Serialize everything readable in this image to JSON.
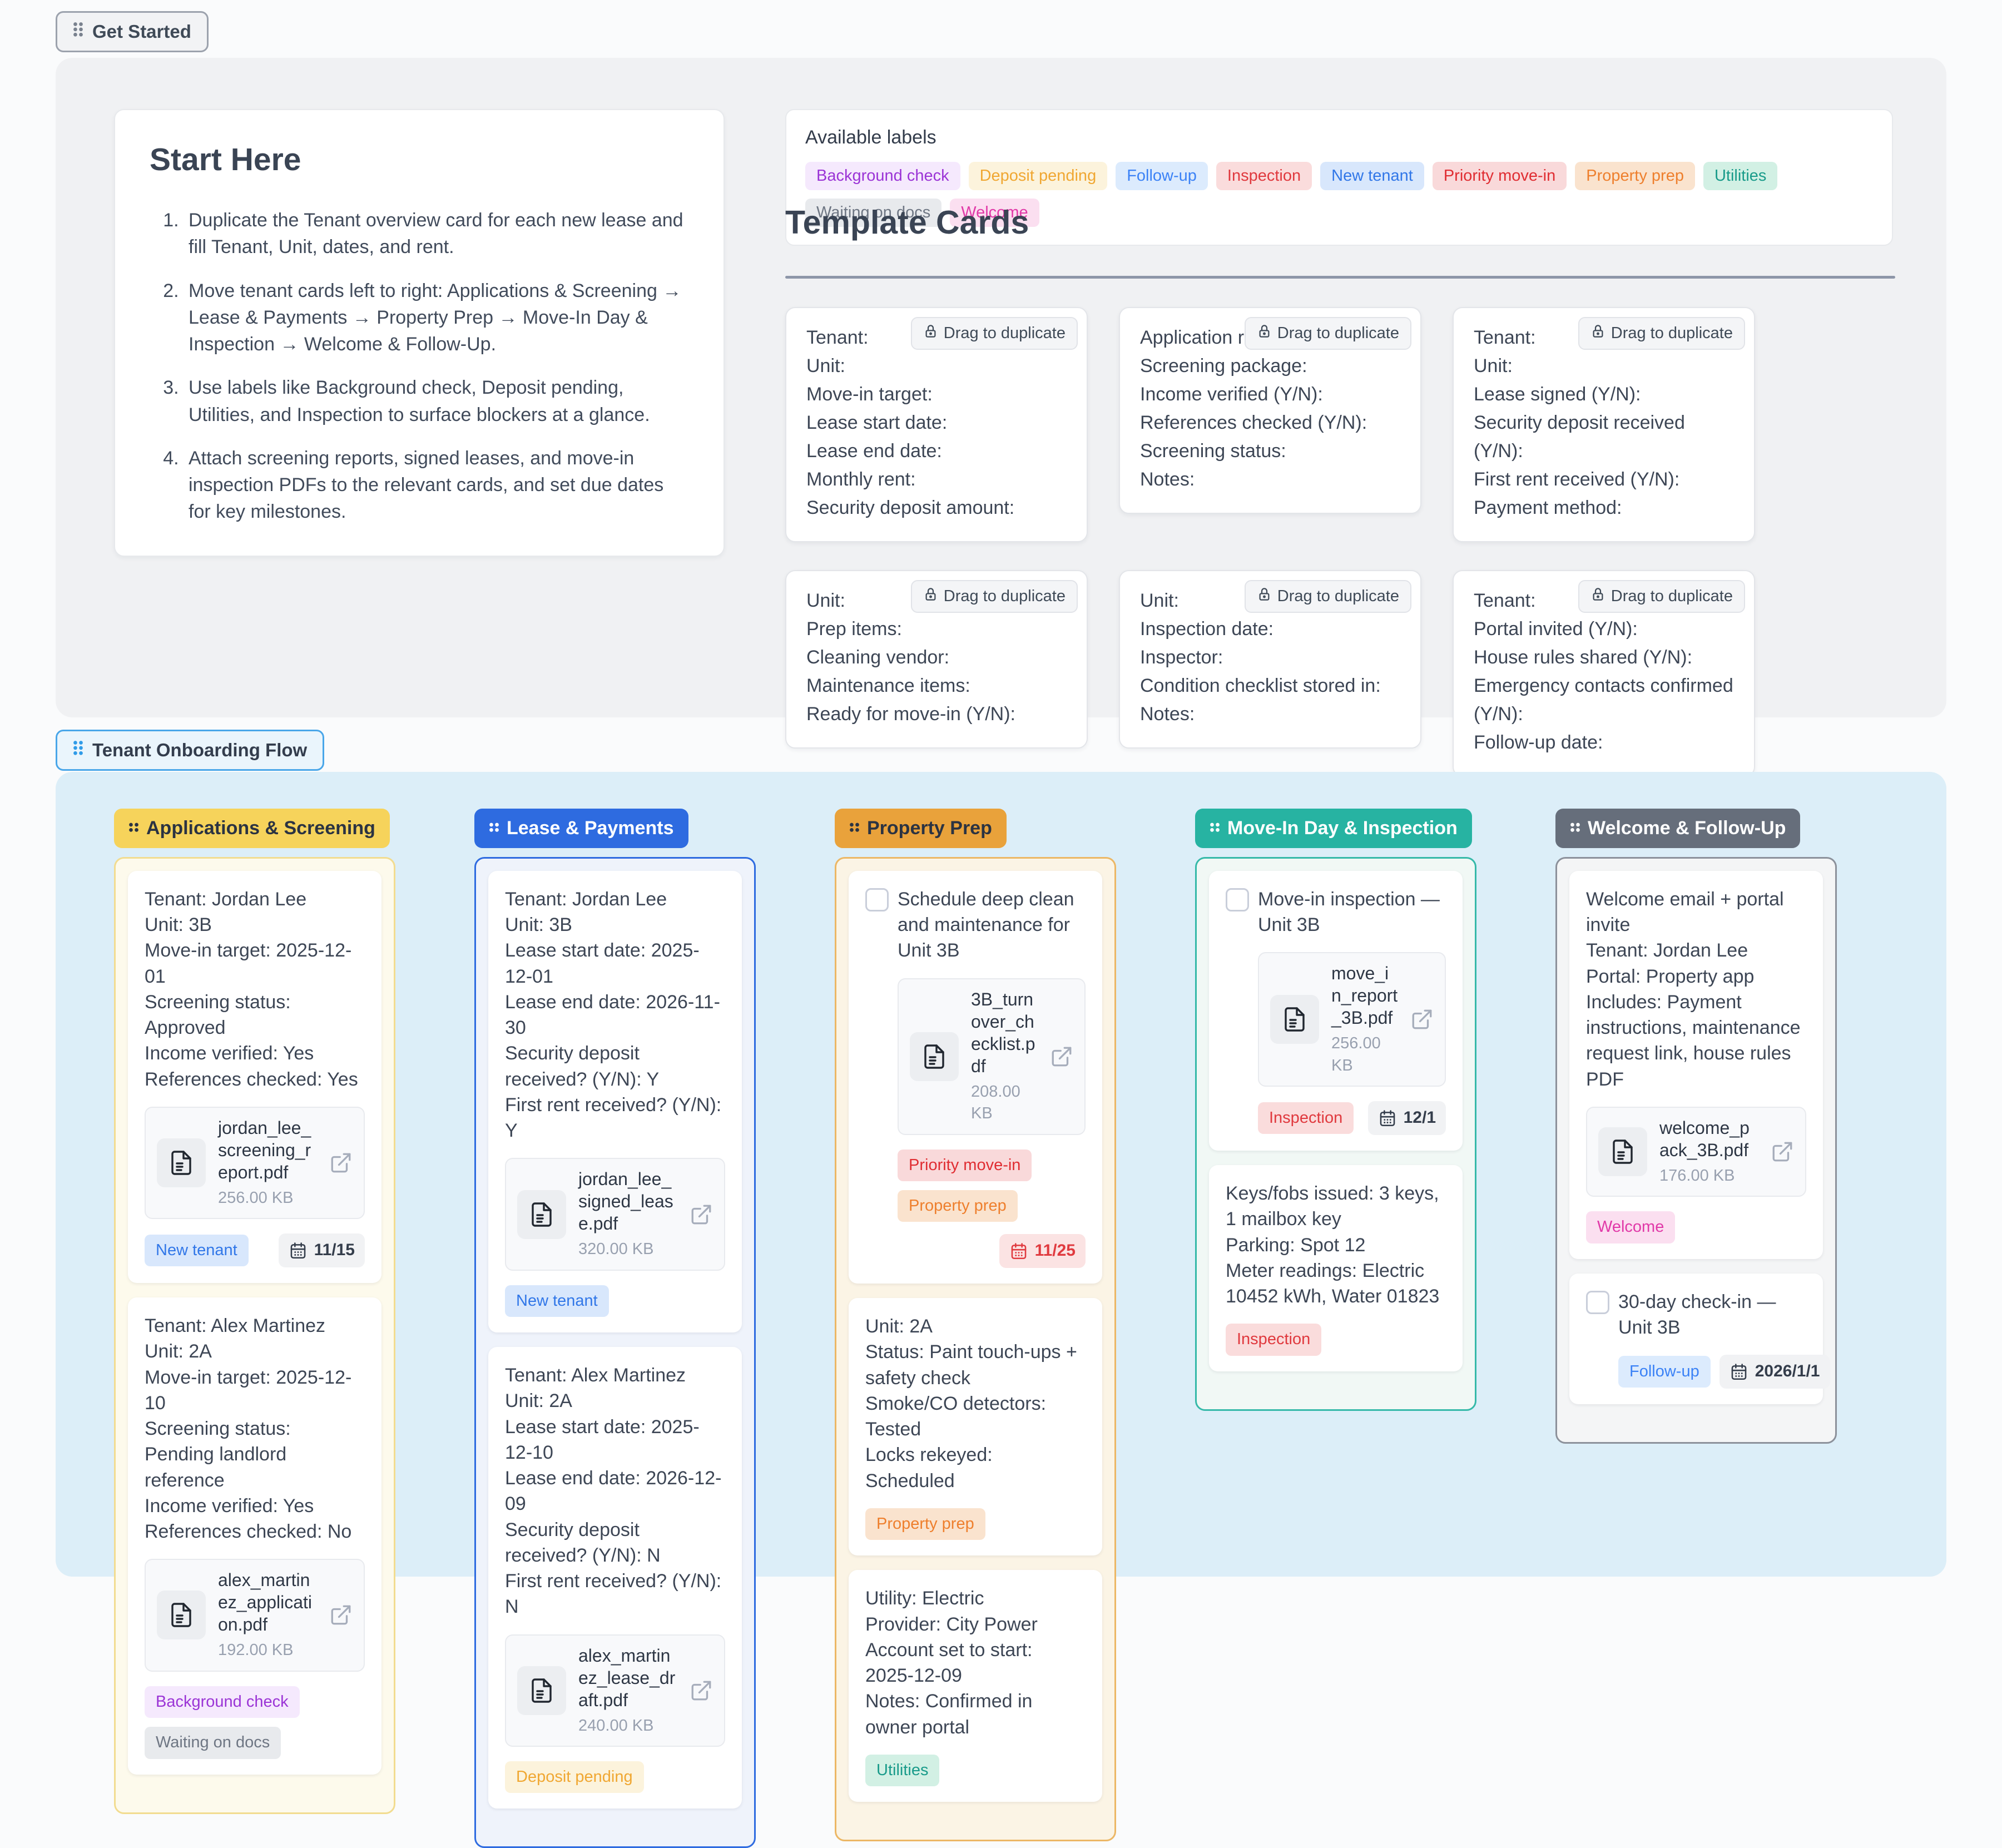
{
  "page": {
    "get_started_label": "Get Started",
    "flow_section_label": "Tenant Onboarding Flow"
  },
  "start_here": {
    "title": "Start Here",
    "steps": [
      "Duplicate the Tenant overview card for each new lease and fill Tenant, Unit, dates, and rent.",
      "Move tenant cards left to right: Applications & Screening → Lease & Payments → Property Prep → Move-In Day & Inspection → Welcome & Follow-Up.",
      "Use labels like Background check, Deposit pending, Utilities, and Inspection to surface blockers at a glance.",
      "Attach screening reports, signed leases, and move-in inspection PDFs to the relevant cards, and set due dates for key milestones."
    ]
  },
  "available_labels": {
    "title": "Available labels",
    "labels": [
      {
        "text": "Background check",
        "color": "#9B34D6",
        "bg": "#F5E9FD"
      },
      {
        "text": "Deposit pending",
        "color": "#F0A732",
        "bg": "#FCF3DC"
      },
      {
        "text": "Follow-up",
        "color": "#3B82F6",
        "bg": "#DCEBFD"
      },
      {
        "text": "Inspection",
        "color": "#E0393E",
        "bg": "#FADCDC"
      },
      {
        "text": "New tenant",
        "color": "#3177E8",
        "bg": "#D8E7FC"
      },
      {
        "text": "Priority move-in",
        "color": "#E02D32",
        "bg": "#F9D9DA"
      },
      {
        "text": "Property prep",
        "color": "#EE7F2D",
        "bg": "#FAE3CE"
      },
      {
        "text": "Utilities",
        "color": "#199B8A",
        "bg": "#D2F0E4"
      },
      {
        "text": "Waiting on docs",
        "color": "#6E7683",
        "bg": "#E8EAED"
      },
      {
        "text": "Welcome",
        "color": "#E139A8",
        "bg": "#FBDFF0"
      }
    ]
  },
  "template_cards": {
    "title": "Template Cards",
    "drag_label": "Drag to duplicate",
    "cards": [
      {
        "lines": [
          "Tenant:",
          "Unit:",
          "Move-in target:",
          "Lease start date:",
          "Lease end date:",
          "Monthly rent:",
          "Security deposit amount:"
        ]
      },
      {
        "lines": [
          "Application received:",
          "Screening package:",
          "Income verified (Y/N):",
          "References checked (Y/N):",
          "Screening status:",
          "Notes:"
        ]
      },
      {
        "lines": [
          "Tenant:",
          "Unit:",
          "Lease signed (Y/N):",
          "Security deposit received (Y/N):",
          "First rent received (Y/N):",
          "Payment method:"
        ]
      },
      {
        "lines": [
          "Unit:",
          "Prep items:",
          "Cleaning vendor:",
          "Maintenance items:",
          "Ready for move-in (Y/N):"
        ]
      },
      {
        "lines": [
          "Unit:",
          "Inspection date:",
          "Inspector:",
          "Condition checklist stored in:",
          "Notes:"
        ]
      },
      {
        "lines": [
          "Tenant:",
          "Portal invited (Y/N):",
          "House rules shared (Y/N):",
          "Emergency contacts confirmed (Y/N):",
          "Follow-up date:"
        ]
      }
    ]
  },
  "board": {
    "columns": [
      {
        "title": "Applications & Screening",
        "header_bg": "#F6D35B",
        "header_color": "#2B3342",
        "dots": "#2B3342",
        "border": "#F2DC90",
        "body_bg": "#FDFAEC",
        "cards": [
          {
            "lines": [
              "Tenant: Jordan Lee",
              "Unit: 3B",
              "Move-in target: 2025-12-01",
              "Screening status: Approved",
              "Income verified: Yes",
              "References checked: Yes"
            ],
            "attachment": {
              "name": "jordan_lee_screening_report.pdf",
              "size": "256.00 KB"
            },
            "labels": [
              "New tenant"
            ],
            "due": {
              "text": "11/15",
              "overdue": false
            }
          },
          {
            "lines": [
              "Tenant: Alex Martinez",
              "Unit: 2A",
              "Move-in target: 2025-12-10",
              "Screening status: Pending landlord reference",
              "Income verified: Yes",
              "References checked: No"
            ],
            "attachment": {
              "name": "alex_martinez_application.pdf",
              "size": "192.00 KB"
            },
            "labels": [
              "Background check",
              "Waiting on docs"
            ]
          }
        ]
      },
      {
        "title": "Lease & Payments",
        "header_bg": "#2E6BE0",
        "header_color": "#FFFFFF",
        "dots": "#FFFFFF",
        "border": "#2E6BE0",
        "body_bg": "#EFF3FB",
        "cards": [
          {
            "lines": [
              "Tenant: Jordan Lee",
              "Unit: 3B",
              "Lease start date: 2025-12-01",
              "Lease end date: 2026-11-30",
              "Security deposit received? (Y/N): Y",
              "First rent received? (Y/N): Y"
            ],
            "attachment": {
              "name": "jordan_lee_signed_lease.pdf",
              "size": "320.00 KB"
            },
            "labels": [
              "New tenant"
            ]
          },
          {
            "lines": [
              "Tenant: Alex Martinez",
              "Unit: 2A",
              "Lease start date: 2025-12-10",
              "Lease end date: 2026-12-09",
              "Security deposit received? (Y/N): N",
              "First rent received? (Y/N): N"
            ],
            "attachment": {
              "name": "alex_martinez_lease_draft.pdf",
              "size": "240.00 KB"
            },
            "labels": [
              "Deposit pending"
            ]
          }
        ]
      },
      {
        "title": "Property Prep",
        "header_bg": "#E9A23B",
        "header_color": "#2B3342",
        "dots": "#2B3342",
        "border": "#ECB765",
        "body_bg": "#FBF4E5",
        "cards": [
          {
            "checkbox_title": "Schedule deep clean and maintenance for Unit 3B",
            "attachment": {
              "name": "3B_turnover_checklist.pdf",
              "size": "208.00 KB"
            },
            "labels": [
              "Priority move-in",
              "Property prep"
            ],
            "due": {
              "text": "11/25",
              "overdue": true,
              "own_row": true
            }
          },
          {
            "lines": [
              "Unit: 2A",
              "Status: Paint touch-ups + safety check",
              "Smoke/CO detectors: Tested",
              "Locks rekeyed: Scheduled"
            ],
            "labels": [
              "Property prep"
            ]
          },
          {
            "lines": [
              "Utility: Electric",
              "Provider: City Power",
              "Account set to start: 2025-12-09",
              "Notes: Confirmed in owner portal"
            ],
            "labels": [
              "Utilities"
            ]
          }
        ]
      },
      {
        "title": "Move-In Day & Inspection",
        "header_bg": "#27B3A2",
        "header_color": "#FFFFFF",
        "dots": "#FFFFFF",
        "border": "#36B9A9",
        "body_bg": "#F1F8F5",
        "cards": [
          {
            "checkbox_title": "Move-in inspection — Unit 3B",
            "attachment": {
              "name": "move_in_report_3B.pdf",
              "size": "256.00 KB"
            },
            "labels": [
              "Inspection"
            ],
            "due": {
              "text": "12/1",
              "overdue": false
            }
          },
          {
            "lines": [
              "Keys/fobs issued: 3 keys, 1 mailbox key",
              "Parking: Spot 12",
              "Meter readings: Electric 10452 kWh, Water 01823"
            ],
            "labels": [
              "Inspection"
            ]
          }
        ]
      },
      {
        "title": "Welcome & Follow-Up",
        "header_bg": "#666E7B",
        "header_color": "#FFFFFF",
        "dots": "#FFFFFF",
        "border": "#8C919B",
        "body_bg": "#F4F5F6",
        "cards": [
          {
            "lines": [
              "Welcome email + portal invite",
              "Tenant: Jordan Lee",
              "Portal: Property app",
              "Includes: Payment instructions, maintenance request link, house rules PDF"
            ],
            "attachment": {
              "name": "welcome_pack_3B.pdf",
              "size": "176.00 KB"
            },
            "labels": [
              "Welcome"
            ]
          },
          {
            "checkbox_title": "30-day check-in — Unit 3B",
            "labels": [
              "Follow-up"
            ],
            "due": {
              "text": "2026/1/1",
              "overdue": false
            }
          }
        ]
      }
    ]
  }
}
